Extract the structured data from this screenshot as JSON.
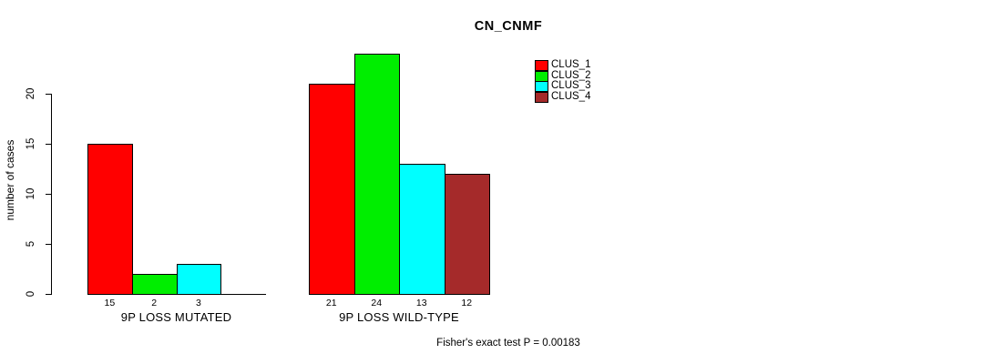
{
  "chart_data": {
    "type": "bar",
    "title": "CN_CNMF",
    "ylabel": "number of cases",
    "xlabel": "",
    "ylim": [
      0,
      20
    ],
    "yticks": [
      0,
      5,
      10,
      15,
      20
    ],
    "grid": false,
    "legend_position": "top-right",
    "categories": [
      "9P LOSS MUTATED",
      "9P LOSS WILD-TYPE"
    ],
    "series": [
      {
        "name": "CLUS_1",
        "color": "#ff0000",
        "values": [
          15,
          21
        ]
      },
      {
        "name": "CLUS_2",
        "color": "#00ee00",
        "values": [
          2,
          24
        ]
      },
      {
        "name": "CLUS_3",
        "color": "#00ffff",
        "values": [
          3,
          13
        ]
      },
      {
        "name": "CLUS_4",
        "color": "#a52a2a",
        "values": [
          0,
          12
        ]
      }
    ],
    "bar_value_labels": [
      [
        "15",
        "2",
        "3",
        ""
      ],
      [
        "21",
        "24",
        "13",
        "12"
      ]
    ],
    "annotation": "Fisher's exact test P = 0.00183"
  }
}
